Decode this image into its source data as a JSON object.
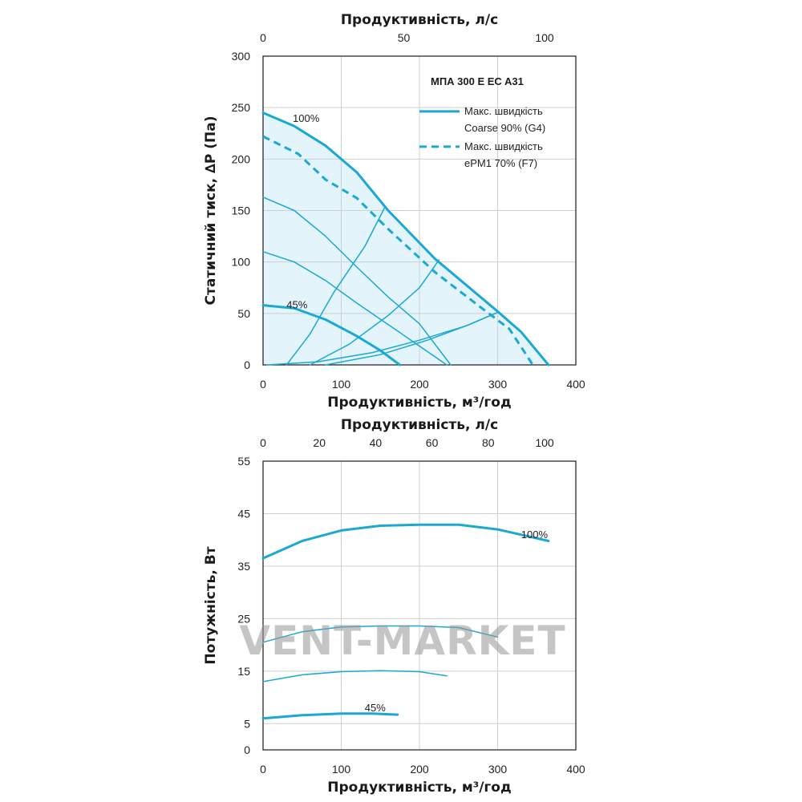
{
  "colors": {
    "curve": "#1ba8d2",
    "fill": "#e3f4fa",
    "grid": "#cfcfcf",
    "frame": "#1a1a1a",
    "watermark": "#9a9a9a"
  },
  "watermark": "VENT-MARKET",
  "chart_data": [
    {
      "type": "line",
      "xlabel": "Продуктивність, м³/год",
      "ylabel": "Статичний тиск, ∆P (Па)",
      "x2label": "Продуктивність, л/с",
      "xlim": [
        0,
        400
      ],
      "ylim": [
        0,
        300
      ],
      "xticks": [
        "0",
        "100",
        "200",
        "300",
        "400"
      ],
      "yticks": [
        "0",
        "50",
        "100",
        "150",
        "200",
        "250",
        "300"
      ],
      "x2ticks": [
        {
          "label": "0",
          "value": 0
        },
        {
          "label": "50",
          "value": 180
        },
        {
          "label": "100",
          "value": 360
        }
      ],
      "grid": true,
      "legend_position": "top-right",
      "legend_title": "МПА 300 E EC A31",
      "legend": [
        {
          "style": "solid",
          "lines": [
            "Макс. швидкість",
            "Coarse 90% (G4)"
          ]
        },
        {
          "style": "dashed",
          "lines": [
            "Макс. швидкість",
            "ePM1 70% (F7)"
          ]
        }
      ],
      "series": [
        {
          "name": "Макс. швидкість Coarse 90% (G4)",
          "style": "solid",
          "width": 3,
          "label": "100%",
          "label_at": [
            38,
            236
          ],
          "points": [
            [
              0,
              245
            ],
            [
              40,
              232
            ],
            [
              80,
              213
            ],
            [
              120,
              187
            ],
            [
              160,
              150
            ],
            [
              220,
              103
            ],
            [
              300,
              52
            ],
            [
              330,
              32
            ],
            [
              365,
              0
            ]
          ]
        },
        {
          "name": "Макс. швидкість ePM1 70% (F7)",
          "style": "dashed",
          "width": 3,
          "points": [
            [
              0,
              222
            ],
            [
              45,
              205
            ],
            [
              80,
              180
            ],
            [
              120,
              162
            ],
            [
              160,
              132
            ],
            [
              220,
              90
            ],
            [
              280,
              55
            ],
            [
              315,
              35
            ],
            [
              345,
              0
            ]
          ]
        },
        {
          "style": "solid",
          "width": 1.5,
          "points": [
            [
              0,
              163
            ],
            [
              40,
              150
            ],
            [
              80,
              125
            ],
            [
              120,
              95
            ],
            [
              160,
              66
            ],
            [
              200,
              40
            ],
            [
              240,
              0
            ]
          ]
        },
        {
          "style": "solid",
          "width": 1.5,
          "points": [
            [
              0,
              110
            ],
            [
              40,
              100
            ],
            [
              80,
              82
            ],
            [
              120,
              60
            ],
            [
              170,
              34
            ],
            [
              235,
              0
            ]
          ]
        },
        {
          "style": "solid",
          "width": 3,
          "label": "45%",
          "label_at": [
            30,
            55
          ],
          "points": [
            [
              0,
              58
            ],
            [
              40,
              55
            ],
            [
              80,
              44
            ],
            [
              120,
              28
            ],
            [
              150,
              14
            ],
            [
              175,
              0
            ]
          ]
        },
        {
          "style": "solid",
          "width": 1.5,
          "points": [
            [
              30,
              0
            ],
            [
              60,
              30
            ],
            [
              90,
              70
            ],
            [
              130,
              115
            ],
            [
              155,
              152
            ]
          ]
        },
        {
          "style": "solid",
          "width": 1.5,
          "points": [
            [
              60,
              0
            ],
            [
              110,
              20
            ],
            [
              160,
              48
            ],
            [
              200,
              75
            ],
            [
              225,
              102
            ]
          ]
        },
        {
          "style": "solid",
          "width": 1.5,
          "points": [
            [
              80,
              0
            ],
            [
              150,
              10
            ],
            [
              210,
              24
            ],
            [
              260,
              38
            ],
            [
              300,
              51
            ]
          ]
        },
        {
          "style": "solid",
          "width": 1.5,
          "points": [
            [
              5,
              0
            ],
            [
              70,
              3
            ],
            [
              140,
              12
            ],
            [
              200,
              24
            ],
            [
              260,
              38
            ],
            [
              300,
              51
            ]
          ]
        }
      ],
      "envelope": [
        [
          0,
          245
        ],
        [
          40,
          232
        ],
        [
          80,
          213
        ],
        [
          120,
          187
        ],
        [
          160,
          150
        ],
        [
          220,
          103
        ],
        [
          300,
          52
        ],
        [
          330,
          32
        ],
        [
          365,
          0
        ],
        [
          0,
          0
        ]
      ]
    },
    {
      "type": "line",
      "xlabel": "Продуктивність, м³/год",
      "ylabel": "Потужність, Вт",
      "x2label": "Продуктивність, л/с",
      "xlim": [
        0,
        400
      ],
      "ylim": [
        0,
        55
      ],
      "xticks": [
        "0",
        "100",
        "200",
        "300",
        "400"
      ],
      "yticks": [
        {
          "label": "0",
          "value": 0
        },
        {
          "label": "5",
          "value": 5
        },
        {
          "label": "15",
          "value": 15
        },
        {
          "label": "25",
          "value": 25
        },
        {
          "label": "35",
          "value": 35
        },
        {
          "label": "45",
          "value": 45
        },
        {
          "label": "55",
          "value": 55
        }
      ],
      "x2ticks": [
        {
          "label": "0",
          "value": 0
        },
        {
          "label": "20",
          "value": 72
        },
        {
          "label": "40",
          "value": 144
        },
        {
          "label": "60",
          "value": 216
        },
        {
          "label": "80",
          "value": 288
        },
        {
          "label": "100",
          "value": 360
        }
      ],
      "grid": true,
      "series": [
        {
          "style": "solid",
          "width": 3,
          "label": "100%",
          "label_at": [
            330,
            40.3
          ],
          "points": [
            [
              0,
              36.5
            ],
            [
              50,
              39.8
            ],
            [
              100,
              41.8
            ],
            [
              150,
              42.7
            ],
            [
              200,
              42.9
            ],
            [
              250,
              42.9
            ],
            [
              300,
              42.0
            ],
            [
              365,
              39.8
            ]
          ]
        },
        {
          "style": "solid",
          "width": 1.5,
          "points": [
            [
              0,
              20.5
            ],
            [
              50,
              22.5
            ],
            [
              100,
              23.4
            ],
            [
              150,
              23.6
            ],
            [
              200,
              23.6
            ],
            [
              250,
              23.3
            ],
            [
              300,
              21.5
            ]
          ]
        },
        {
          "style": "solid",
          "width": 1.5,
          "points": [
            [
              0,
              13.0
            ],
            [
              50,
              14.3
            ],
            [
              100,
              14.9
            ],
            [
              150,
              15.1
            ],
            [
              200,
              14.9
            ],
            [
              235,
              14.1
            ]
          ]
        },
        {
          "style": "solid",
          "width": 3,
          "label": "45%",
          "label_at": [
            130,
            7.3
          ],
          "points": [
            [
              0,
              6.0
            ],
            [
              50,
              6.6
            ],
            [
              100,
              6.9
            ],
            [
              140,
              6.9
            ],
            [
              172,
              6.7
            ]
          ]
        }
      ]
    }
  ]
}
